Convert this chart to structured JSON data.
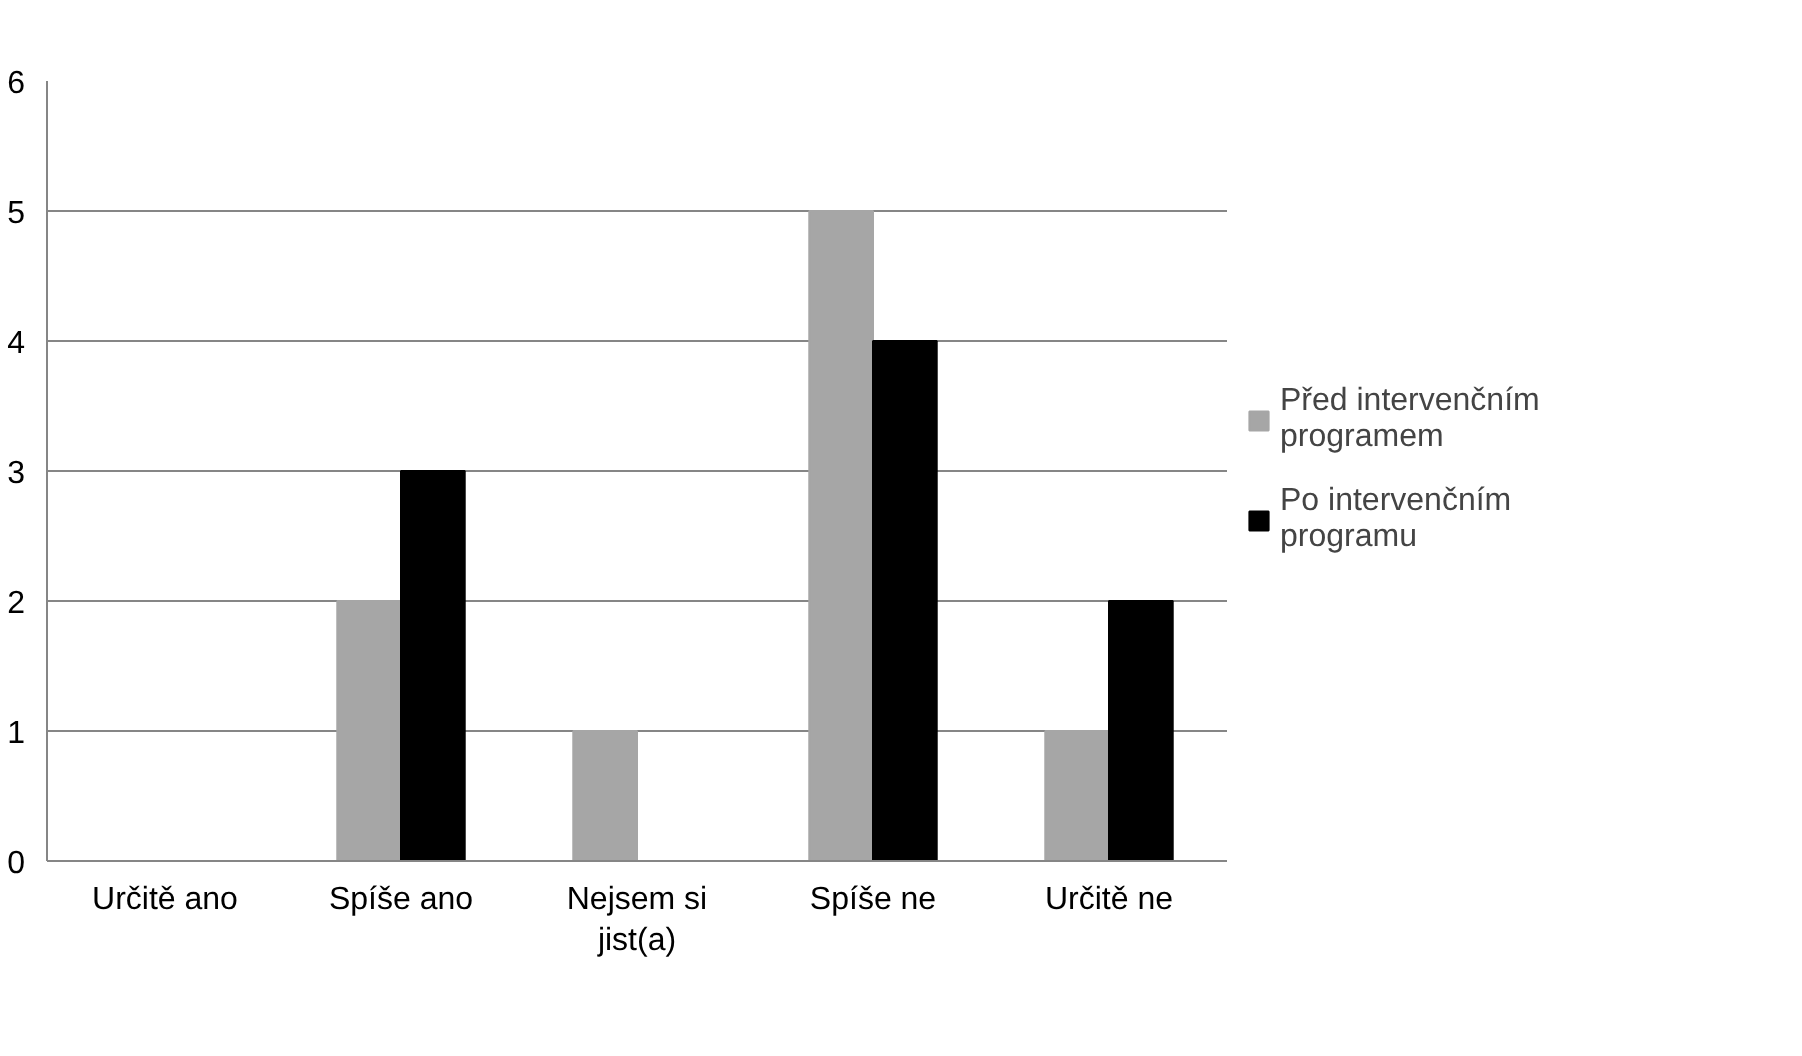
{
  "chart_data": {
    "type": "bar",
    "categories": [
      "Určitě ano",
      "Spíše ano",
      "Nejsem si jist(a)",
      "Spíše ne",
      "Určitě ne"
    ],
    "series": [
      {
        "name": "Před intervenčním programem",
        "color": "#a6a6a6",
        "values": [
          0,
          2,
          1,
          5,
          1
        ]
      },
      {
        "name": "Po intervenčním programu",
        "color": "#000000",
        "values": [
          0,
          3,
          0,
          4,
          2
        ]
      }
    ],
    "ylim": [
      0,
      6
    ],
    "yticks": [
      0,
      1,
      2,
      3,
      4,
      5,
      6
    ],
    "grid": "y",
    "legend": "right"
  }
}
